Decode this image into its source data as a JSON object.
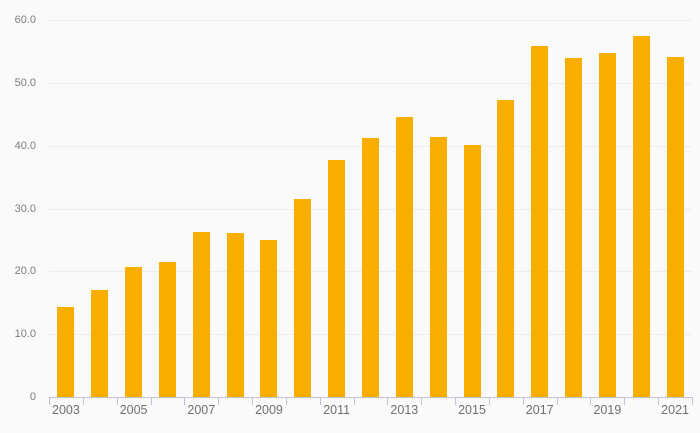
{
  "colors": {
    "background": "#fafafa",
    "bar": "#f9ae00",
    "gridline": "#ececec",
    "axis_line": "#bcc5d6",
    "y_label_text": "#7c7c7c",
    "x_label_text": "#6f6f6f"
  },
  "chart_data": {
    "type": "bar",
    "title": "",
    "xlabel": "",
    "ylabel": "",
    "categories": [
      "2003",
      "2004",
      "2005",
      "2006",
      "2007",
      "2008",
      "2009",
      "2010",
      "2011",
      "2012",
      "2013",
      "2014",
      "2015",
      "2016",
      "2017",
      "2018",
      "2019",
      "2020",
      "2021"
    ],
    "values": [
      14.4,
      17.1,
      20.7,
      21.5,
      26.3,
      26.1,
      25.0,
      31.5,
      37.8,
      41.3,
      44.5,
      41.4,
      40.1,
      47.3,
      55.9,
      53.9,
      54.7,
      57.5,
      54.1
    ],
    "labeled_categories": [
      "2003",
      "2005",
      "2007",
      "2009",
      "2011",
      "2013",
      "2015",
      "2017",
      "2019",
      "2021"
    ],
    "ylim": [
      0,
      60
    ],
    "yticks": [
      0,
      10,
      20,
      30,
      40,
      50,
      60
    ],
    "ytick_labels": [
      "0",
      "10.0",
      "20.0",
      "30.0",
      "40.0",
      "50.0",
      "60.0"
    ],
    "grid": true,
    "legend": false,
    "bar_color": "#f9ae00"
  }
}
